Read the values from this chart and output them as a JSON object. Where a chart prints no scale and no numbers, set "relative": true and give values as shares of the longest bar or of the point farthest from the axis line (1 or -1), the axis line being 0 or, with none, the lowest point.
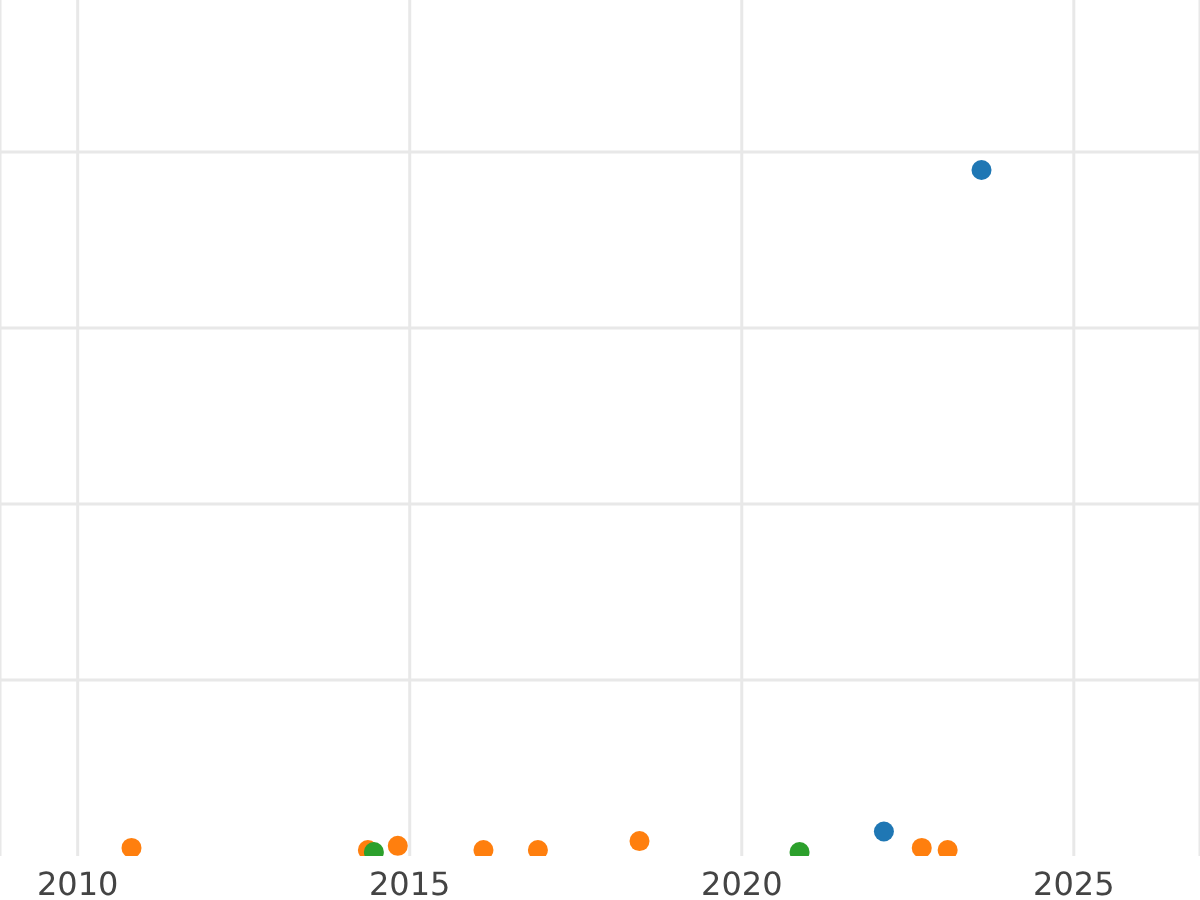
{
  "chart_data": {
    "type": "scatter",
    "relative": true,
    "xlim": [
      2008.83,
      2026.9
    ],
    "xticks": [
      2010,
      2015,
      2020,
      2025
    ],
    "grid": true,
    "marker": "circle",
    "series": [
      {
        "color": "#1f77b4",
        "x": [
          2022.14,
          2023.61
        ],
        "values": [
          0.03,
          1
        ]
      },
      {
        "color": "#ff7f0e",
        "x": [
          2010.81,
          2014.37,
          2014.82,
          2016.11,
          2016.93,
          2018.46,
          2022.71,
          2023.1
        ],
        "values": [
          0.006,
          0.003,
          0.009,
          0.003,
          0.003,
          0.016,
          0.006,
          0.003
        ]
      },
      {
        "color": "#2ca02c",
        "x": [
          2014.46,
          2020.87
        ],
        "values": [
          0,
          0
        ]
      }
    ]
  }
}
